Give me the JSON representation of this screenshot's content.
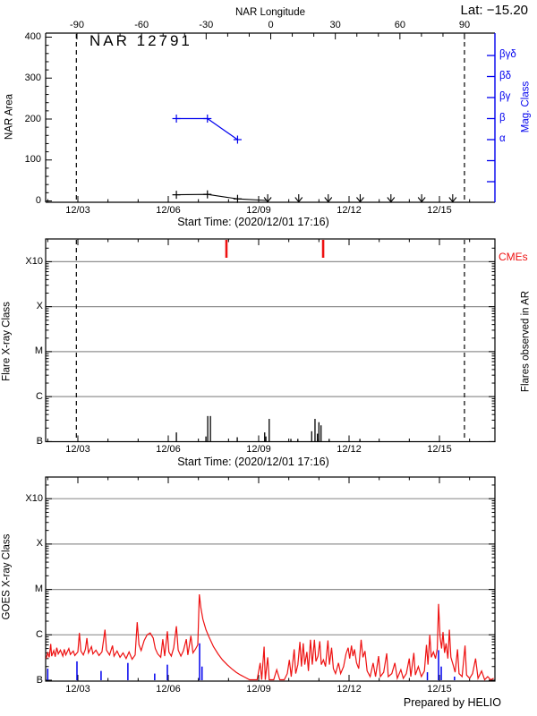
{
  "header": {
    "lat_label": "Lat: −15.20"
  },
  "footer": {
    "credit": "Prepared by HELIO"
  },
  "colors": {
    "blue": "#0000ee",
    "red": "#ee1111",
    "grid": "#909090",
    "black": "#000000"
  },
  "chart_data": [
    {
      "type": "line",
      "title": "NAR 12791",
      "top_axis": {
        "label": "NAR Longitude",
        "ticks": [
          -90,
          -60,
          -30,
          0,
          30,
          60,
          90
        ]
      },
      "ylabel": "NAR Area",
      "yticks": [
        0,
        100,
        200,
        300,
        400
      ],
      "ylim": [
        0,
        400
      ],
      "right_axis": {
        "label": "Mag. Class",
        "classes": [
          "βγδ",
          "βδ",
          "βγ",
          "β",
          "α"
        ]
      },
      "xticks": [
        "12/03",
        "12/06",
        "12/09",
        "12/12",
        "12/15"
      ],
      "xtick_days": [
        3,
        6,
        9,
        12,
        15
      ],
      "xlabel": "Start Time: (2020/12/01 17:16)",
      "area_series": {
        "days": [
          6.27,
          7.3,
          8.3
        ],
        "values": [
          15,
          16,
          5
        ],
        "tail": [
          9.29,
          1
        ]
      },
      "mag_series": {
        "days": [
          6.27,
          7.3,
          8.3
        ],
        "classes": [
          "β",
          "β",
          "α"
        ]
      },
      "arrow_days": [
        9.3,
        10.33,
        11.31,
        12.37,
        13.39,
        14.41,
        15.44
      ],
      "limb_line_days": [
        2.95,
        15.83
      ]
    },
    {
      "type": "spikes",
      "ylabel": "Flare X-ray Class",
      "yticks": [
        "B",
        "C",
        "M",
        "X",
        "X10"
      ],
      "right_label": "Flares observed in AR",
      "cme_label": "CMEs",
      "xticks": [
        "12/03",
        "12/06",
        "12/09",
        "12/12",
        "12/15"
      ],
      "xtick_days": [
        3,
        6,
        9,
        12,
        15
      ],
      "xlabel": "Start Time: (2020/12/01 17:16)",
      "flare_days": [
        6.27,
        7.25,
        7.31,
        7.4,
        8.29,
        9.2,
        9.24,
        9.35,
        10.07,
        10.3,
        10.76,
        10.87,
        10.95,
        11.0,
        11.07,
        11.34,
        12.36
      ],
      "flare_peaks_b": [
        1.6,
        1.3,
        3.7,
        3.7,
        1.25,
        1.6,
        1.3,
        3.2,
        1.15,
        1.15,
        1.7,
        3.2,
        1.5,
        2.7,
        2.3,
        1.15,
        1.15
      ],
      "cme_days": [
        7.93,
        11.14
      ],
      "limb_line_days": [
        2.95,
        15.83
      ]
    },
    {
      "type": "line",
      "ylabel": "GOES X-ray Class",
      "yticks": [
        "B",
        "C",
        "M",
        "X",
        "X10"
      ],
      "xticks": [
        "12/03",
        "12/06",
        "12/09",
        "12/12",
        "12/15"
      ],
      "xtick_days": [
        3,
        6,
        9,
        12,
        15
      ],
      "flux_points": [
        [
          1.95,
          3.0
        ],
        [
          2.0,
          4.0
        ],
        [
          2.05,
          3.2
        ],
        [
          2.1,
          6.3
        ],
        [
          2.13,
          3.4
        ],
        [
          2.2,
          4.5
        ],
        [
          2.25,
          3.3
        ],
        [
          2.3,
          5.2
        ],
        [
          2.35,
          3.8
        ],
        [
          2.42,
          4.6
        ],
        [
          2.5,
          3.4
        ],
        [
          2.55,
          4.8
        ],
        [
          2.6,
          3.6
        ],
        [
          2.7,
          5.0
        ],
        [
          2.75,
          3.7
        ],
        [
          2.85,
          4.4
        ],
        [
          2.9,
          3.5
        ],
        [
          3.0,
          4.2
        ],
        [
          3.05,
          11.0
        ],
        [
          3.1,
          4.4
        ],
        [
          3.18,
          3.6
        ],
        [
          3.25,
          4.8
        ],
        [
          3.3,
          8.5
        ],
        [
          3.35,
          4.0
        ],
        [
          3.45,
          5.5
        ],
        [
          3.5,
          3.8
        ],
        [
          3.6,
          4.6
        ],
        [
          3.7,
          3.5
        ],
        [
          3.8,
          4.2
        ],
        [
          3.9,
          13.0
        ],
        [
          3.95,
          4.6
        ],
        [
          4.05,
          3.6
        ],
        [
          4.15,
          5.8
        ],
        [
          4.2,
          3.4
        ],
        [
          4.3,
          4.4
        ],
        [
          4.4,
          3.2
        ],
        [
          4.5,
          4.0
        ],
        [
          4.6,
          3.0
        ],
        [
          4.7,
          4.2
        ],
        [
          4.8,
          2.9
        ],
        [
          4.9,
          3.6
        ],
        [
          4.97,
          19.0
        ],
        [
          5.03,
          6.0
        ],
        [
          5.1,
          4.5
        ],
        [
          5.2,
          7.5
        ],
        [
          5.3,
          10.0
        ],
        [
          5.4,
          11.0
        ],
        [
          5.5,
          8.5
        ],
        [
          5.57,
          5.0
        ],
        [
          5.65,
          3.8
        ],
        [
          5.75,
          3.2
        ],
        [
          5.82,
          8.0
        ],
        [
          5.88,
          3.4
        ],
        [
          5.97,
          12.0
        ],
        [
          6.02,
          4.2
        ],
        [
          6.1,
          3.4
        ],
        [
          6.18,
          5.2
        ],
        [
          6.27,
          15.5
        ],
        [
          6.33,
          4.6
        ],
        [
          6.42,
          3.4
        ],
        [
          6.5,
          4.4
        ],
        [
          6.6,
          8.0
        ],
        [
          6.65,
          3.6
        ],
        [
          6.75,
          9.5
        ],
        [
          6.82,
          4.0
        ],
        [
          6.9,
          4.8
        ],
        [
          6.98,
          6.0
        ],
        [
          7.03,
          78.0
        ],
        [
          7.08,
          40.0
        ],
        [
          7.15,
          22.0
        ],
        [
          7.25,
          13.0
        ],
        [
          7.35,
          9.0
        ],
        [
          7.5,
          5.5
        ],
        [
          7.65,
          3.8
        ],
        [
          7.8,
          2.8
        ],
        [
          7.95,
          2.2
        ],
        [
          8.1,
          1.8
        ],
        [
          8.25,
          1.5
        ],
        [
          8.4,
          1.3
        ],
        [
          8.55,
          1.15
        ],
        [
          8.7,
          1.0
        ],
        [
          8.85,
          1.0
        ],
        [
          8.95,
          1.0
        ],
        [
          9.05,
          2.4
        ],
        [
          9.1,
          1.0
        ],
        [
          9.18,
          5.5
        ],
        [
          9.22,
          1.0
        ],
        [
          9.3,
          3.2
        ],
        [
          9.35,
          1.0
        ],
        [
          9.5,
          1.0
        ],
        [
          9.6,
          1.7
        ],
        [
          9.7,
          1.0
        ],
        [
          9.85,
          1.0
        ],
        [
          9.95,
          1.4
        ],
        [
          10.02,
          2.8
        ],
        [
          10.08,
          1.2
        ],
        [
          10.18,
          4.8
        ],
        [
          10.23,
          1.4
        ],
        [
          10.3,
          2.2
        ],
        [
          10.37,
          7.0
        ],
        [
          10.42,
          2.0
        ],
        [
          10.48,
          6.5
        ],
        [
          10.53,
          2.2
        ],
        [
          10.6,
          4.2
        ],
        [
          10.65,
          1.6
        ],
        [
          10.72,
          7.8
        ],
        [
          10.78,
          2.2
        ],
        [
          10.85,
          7.8
        ],
        [
          10.9,
          2.6
        ],
        [
          10.97,
          3.4
        ],
        [
          11.03,
          7.2
        ],
        [
          11.08,
          2.2
        ],
        [
          11.15,
          2.8
        ],
        [
          11.22,
          2.0
        ],
        [
          11.3,
          7.5
        ],
        [
          11.35,
          2.2
        ],
        [
          11.42,
          5.2
        ],
        [
          11.48,
          1.8
        ],
        [
          11.55,
          1.4
        ],
        [
          11.65,
          2.4
        ],
        [
          11.72,
          1.4
        ],
        [
          11.82,
          2.0
        ],
        [
          11.9,
          3.8
        ],
        [
          11.97,
          5.2
        ],
        [
          12.02,
          3.0
        ],
        [
          12.08,
          5.8
        ],
        [
          12.13,
          3.4
        ],
        [
          12.18,
          4.8
        ],
        [
          12.25,
          2.4
        ],
        [
          12.32,
          1.8
        ],
        [
          12.4,
          7.8
        ],
        [
          12.46,
          3.2
        ],
        [
          12.53,
          4.4
        ],
        [
          12.6,
          1.6
        ],
        [
          12.7,
          1.2
        ],
        [
          12.8,
          2.4
        ],
        [
          12.88,
          1.2
        ],
        [
          12.98,
          3.4
        ],
        [
          13.04,
          1.2
        ],
        [
          13.15,
          1.5
        ],
        [
          13.25,
          3.9
        ],
        [
          13.3,
          1.2
        ],
        [
          13.42,
          1.4
        ],
        [
          13.52,
          2.4
        ],
        [
          13.6,
          1.1
        ],
        [
          13.72,
          1.7
        ],
        [
          13.8,
          1.1
        ],
        [
          13.9,
          1.4
        ],
        [
          14.0,
          3.0
        ],
        [
          14.05,
          1.2
        ],
        [
          14.15,
          4.0
        ],
        [
          14.2,
          1.3
        ],
        [
          14.3,
          2.0
        ],
        [
          14.4,
          1.2
        ],
        [
          14.5,
          1.6
        ],
        [
          14.57,
          6.0
        ],
        [
          14.62,
          2.2
        ],
        [
          14.68,
          10.0
        ],
        [
          14.73,
          3.2
        ],
        [
          14.8,
          4.2
        ],
        [
          14.87,
          3.0
        ],
        [
          14.93,
          5.0
        ],
        [
          14.97,
          48.0
        ],
        [
          15.02,
          9.0
        ],
        [
          15.07,
          5.0
        ],
        [
          15.12,
          11.5
        ],
        [
          15.17,
          4.0
        ],
        [
          15.22,
          6.5
        ],
        [
          15.28,
          3.0
        ],
        [
          15.33,
          13.0
        ],
        [
          15.38,
          3.2
        ],
        [
          15.45,
          2.2
        ],
        [
          15.52,
          1.5
        ],
        [
          15.6,
          4.8
        ],
        [
          15.65,
          1.4
        ],
        [
          15.75,
          1.2
        ],
        [
          15.85,
          5.8
        ],
        [
          15.9,
          1.3
        ],
        [
          16.0,
          1.1
        ],
        [
          16.1,
          1.4
        ],
        [
          16.2,
          3.0
        ],
        [
          16.28,
          1.1
        ],
        [
          16.4,
          1.6
        ],
        [
          16.5,
          1.0
        ],
        [
          16.6,
          1.2
        ],
        [
          16.7,
          1.0
        ],
        [
          16.8,
          1.1
        ]
      ],
      "event_spikes": {
        "days": [
          2.0,
          2.97,
          3.77,
          4.66,
          5.55,
          5.97,
          7.04,
          7.12,
          14.6,
          14.97,
          15.06,
          15.5
        ],
        "peaks_b": [
          1.8,
          2.6,
          1.6,
          2.4,
          1.4,
          2.2,
          6.5,
          2.0,
          1.5,
          4.6,
          2.0,
          1.2
        ]
      }
    }
  ]
}
